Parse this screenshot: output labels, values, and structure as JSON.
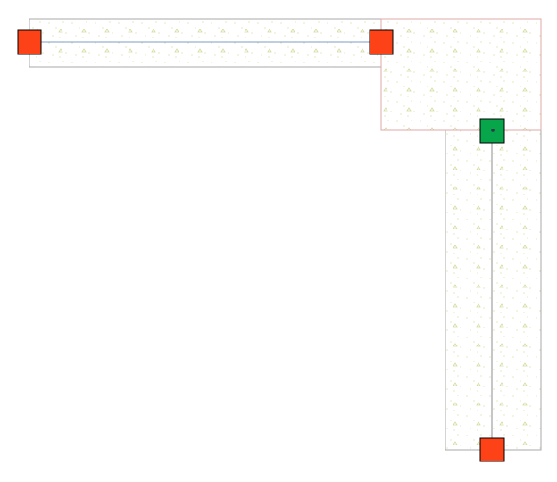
{
  "colors": {
    "background": "#ffffff",
    "slab_border": "#a8a8a8",
    "selected_region_border": "#e0a8a8",
    "hatch": "#d4dc9c",
    "end_node": "#fc4216",
    "joint_node": "#07a64b",
    "beam_line_horizontal": "#7f9cc4",
    "beam_line_vertical": "#8c8c8c"
  },
  "icons": {
    "end_node": "square-node-icon",
    "joint_node": "square-node-icon"
  }
}
